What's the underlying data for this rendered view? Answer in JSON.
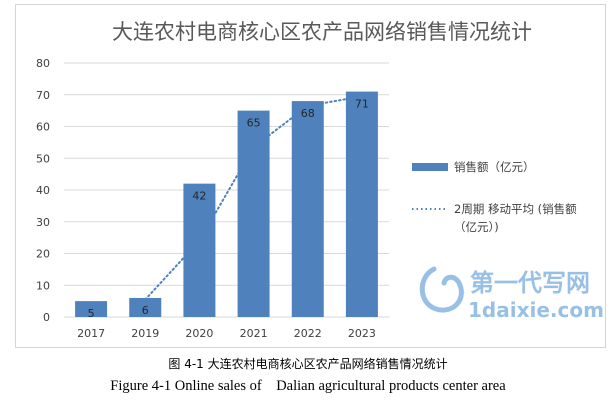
{
  "chart_data": {
    "type": "bar",
    "title": "大连农村电商核心区农产品网络销售情况统计",
    "categories": [
      "2017",
      "2019",
      "2020",
      "2021",
      "2022",
      "2023"
    ],
    "series": [
      {
        "name": "销售额（亿元）",
        "values": [
          5,
          6,
          42,
          65,
          68,
          71
        ],
        "color": "#4f81bd"
      }
    ],
    "trendline": {
      "name": "2周期 移动平均 (销售额（亿元）)",
      "legend_lines": [
        "2周期 移动平均 (销售额",
        "（亿元）)"
      ],
      "type": "moving_average",
      "period": 2,
      "style": "dotted",
      "color": "#4f81bd"
    },
    "ylim": [
      0,
      80
    ],
    "yticks": [
      0,
      10,
      20,
      30,
      40,
      50,
      60,
      70,
      80
    ],
    "grid": true,
    "legend": "right",
    "data_labels": true
  },
  "captions": {
    "cn": "图 4-1  大连农村电商核心区农产品网络销售情况统计",
    "en": "Figure 4-1 Online sales of    Dalian agricultural products center area"
  },
  "watermark": {
    "cn": "第一代写网",
    "url": "1daixie.com",
    "color": "#1b73c9"
  }
}
